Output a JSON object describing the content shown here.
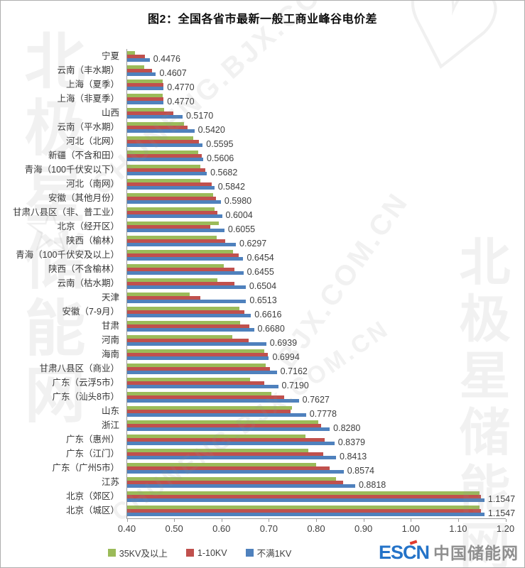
{
  "title": "图2：全国各省市最新一般工商业峰谷电价差",
  "watermarks": {
    "site_cn": "北极星储能网",
    "site_en": "CHUNENG.BJX.COM.CN",
    "site_en_short": "BJX.COM.CN",
    "heart": "♡",
    "star": "☆"
  },
  "footer_logo": {
    "escn": "ESCN",
    "site_name": "中国储能网"
  },
  "chart_data": {
    "type": "bar",
    "orientation": "horizontal",
    "title": "图2：全国各省市最新一般工商业峰谷电价差",
    "xlabel": "",
    "ylabel": "",
    "xlim": [
      0.4,
      1.2
    ],
    "x_ticks": [
      "0.40",
      "0.50",
      "0.60",
      "0.70",
      "0.80",
      "0.90",
      "1.00",
      "1.10",
      "1.20"
    ],
    "grid": false,
    "legend_position": "bottom",
    "categories": [
      "宁夏",
      "云南（丰水期）",
      "上海（夏季）",
      "上海（非夏季）",
      "山西",
      "云南（平水期）",
      "河北（北网）",
      "新疆（不含和田）",
      "青海（100千伏安以下）",
      "河北（南网）",
      "安徽（其他月份）",
      "甘肃八县区（非、普工业）",
      "北京（经开区）",
      "陕西（榆林）",
      "青海（100千伏安及以上）",
      "陕西（不含榆林）",
      "云南（枯水期）",
      "天津",
      "安徽（7-9月）",
      "甘肃",
      "河南",
      "海南",
      "甘肃八县区（商业）",
      "广东（云浮5市）",
      "广东（汕头8市）",
      "山东",
      "浙江",
      "广东（惠州）",
      "广东（江门）",
      "广东（广州5市）",
      "江苏",
      "北京（郊区）",
      "北京（城区）"
    ],
    "series": [
      {
        "name": "35KV及以上",
        "color": "#9BBB59",
        "values_estimated": true,
        "values": [
          0.417,
          0.436,
          0.475,
          0.475,
          0.478,
          0.52,
          0.539,
          0.55,
          0.555,
          0.554,
          0.581,
          0.584,
          0.594,
          0.589,
          0.624,
          0.604,
          0.59,
          0.532,
          0.637,
          0.638,
          0.622,
          0.689,
          0.692,
          0.659,
          0.704,
          0.748,
          0.804,
          0.777,
          0.782,
          0.799,
          0.842,
          1.145,
          1.145
        ]
      },
      {
        "name": "1-10KV",
        "color": "#C0504D",
        "values_estimated": true,
        "values": [
          0.438,
          0.453,
          0.476,
          0.476,
          0.498,
          0.528,
          0.551,
          0.557,
          0.565,
          0.578,
          0.587,
          0.591,
          0.576,
          0.607,
          0.635,
          0.626,
          0.627,
          0.555,
          0.647,
          0.658,
          0.656,
          0.697,
          0.702,
          0.689,
          0.731,
          0.745,
          0.81,
          0.817,
          0.814,
          0.828,
          0.857,
          1.148,
          1.148
        ]
      },
      {
        "name": "不满1KV",
        "color": "#4F81BD",
        "values_estimated": false,
        "values": [
          0.4476,
          0.4607,
          0.477,
          0.477,
          0.517,
          0.542,
          0.5595,
          0.5606,
          0.5682,
          0.5842,
          0.598,
          0.6004,
          0.6055,
          0.6297,
          0.6454,
          0.6455,
          0.6504,
          0.6513,
          0.6616,
          0.668,
          0.6939,
          0.6994,
          0.7162,
          0.719,
          0.7627,
          0.7778,
          0.828,
          0.8379,
          0.8413,
          0.8574,
          0.8818,
          1.1547,
          1.1547
        ]
      }
    ],
    "data_labels": [
      "0.4476",
      "0.4607",
      "0.4770",
      "0.4770",
      "0.5170",
      "0.5420",
      "0.5595",
      "0.5606",
      "0.5682",
      "0.5842",
      "0.5980",
      "0.6004",
      "0.6055",
      "0.6297",
      "0.6454",
      "0.6455",
      "0.6504",
      "0.6513",
      "0.6616",
      "0.6680",
      "0.6939",
      "0.6994",
      "0.7162",
      "0.7190",
      "0.7627",
      "0.7778",
      "0.8280",
      "0.8379",
      "0.8413",
      "0.8574",
      "0.8818",
      "1.1547",
      "1.1547"
    ]
  }
}
